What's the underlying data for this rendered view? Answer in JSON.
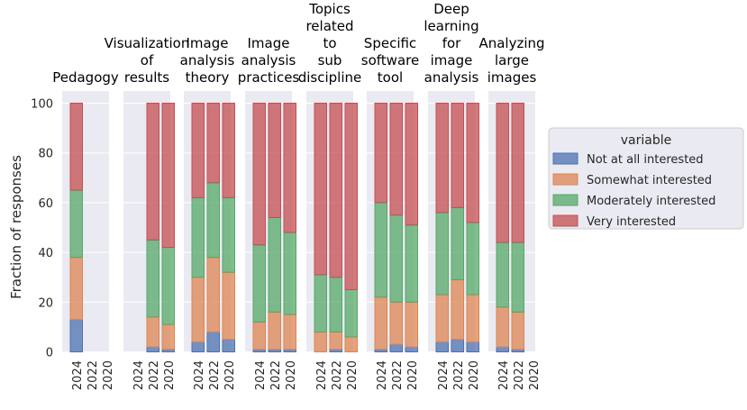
{
  "chart_data": {
    "type": "bar",
    "stacked": true,
    "ylabel": "Fraction of responses",
    "ylim": [
      0,
      100
    ],
    "yticks": [
      0,
      20,
      40,
      60,
      80,
      100
    ],
    "grid": true,
    "years": [
      "2024",
      "2022",
      "2020"
    ],
    "series": [
      {
        "name": "Not at all interested",
        "color": "#4c72b0"
      },
      {
        "name": "Somewhat interested",
        "color": "#dd8452"
      },
      {
        "name": "Moderately interested",
        "color": "#55a868"
      },
      {
        "name": "Very interested",
        "color": "#c44e52"
      }
    ],
    "legend": {
      "title": "variable",
      "position": "right"
    },
    "panels": [
      {
        "title": [
          "Pedagogy"
        ],
        "values": [
          [
            13,
            25,
            27,
            35
          ],
          null,
          null
        ]
      },
      {
        "title": [
          "Visualization",
          "of",
          "results"
        ],
        "values": [
          null,
          [
            2,
            12,
            31,
            55
          ],
          [
            1,
            10,
            31,
            58
          ]
        ]
      },
      {
        "title": [
          "Image",
          "analysis",
          "theory"
        ],
        "values": [
          [
            4,
            26,
            32,
            38
          ],
          [
            8,
            30,
            30,
            32
          ],
          [
            5,
            27,
            30,
            38
          ]
        ]
      },
      {
        "title": [
          "Image",
          "analysis",
          "practices"
        ],
        "values": [
          [
            1,
            11,
            31,
            57
          ],
          [
            1,
            15,
            38,
            46
          ],
          [
            1,
            14,
            33,
            52
          ]
        ]
      },
      {
        "title": [
          "Topics",
          "related",
          "to",
          "sub",
          "discipline"
        ],
        "values": [
          [
            0,
            8,
            23,
            69
          ],
          [
            1,
            7,
            22,
            70
          ],
          [
            0,
            6,
            19,
            75
          ]
        ]
      },
      {
        "title": [
          "Specific",
          "software",
          "tool"
        ],
        "values": [
          [
            1,
            21,
            38,
            40
          ],
          [
            3,
            17,
            35,
            45
          ],
          [
            2,
            18,
            31,
            49
          ]
        ]
      },
      {
        "title": [
          "Deep",
          "learning",
          "for",
          "image",
          "analysis"
        ],
        "values": [
          [
            4,
            19,
            33,
            44
          ],
          [
            5,
            24,
            29,
            42
          ],
          [
            4,
            19,
            29,
            48
          ]
        ]
      },
      {
        "title": [
          "Analyzing",
          "large",
          "images"
        ],
        "values": [
          [
            2,
            16,
            26,
            56
          ],
          [
            1,
            15,
            28,
            56
          ],
          null
        ]
      }
    ]
  }
}
